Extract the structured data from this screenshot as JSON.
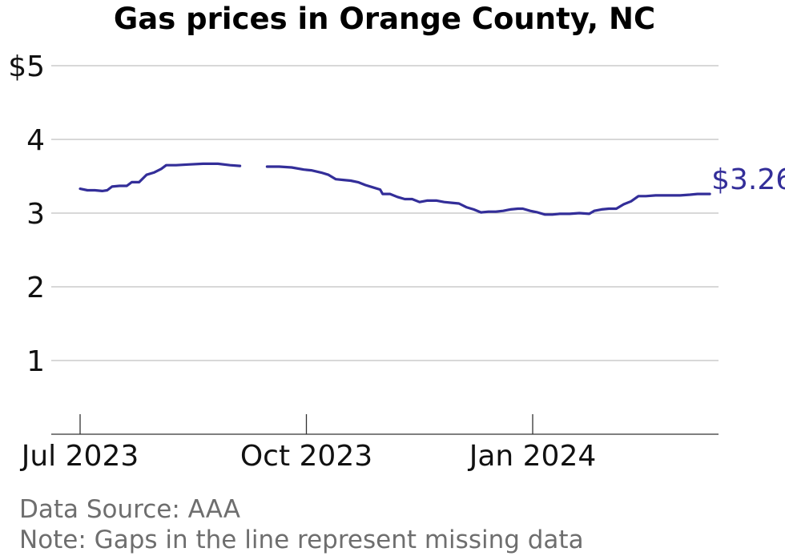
{
  "chart_data": {
    "type": "line",
    "title": "Gas prices in Orange County, NC",
    "xlabel": "",
    "ylabel": "",
    "ylim": [
      0,
      5
    ],
    "xlim": [
      "2023-06-24",
      "2024-03-27"
    ],
    "grid": "horizontal",
    "yticks": [
      {
        "value": 5,
        "label": "$5"
      },
      {
        "value": 4,
        "label": "4"
      },
      {
        "value": 3,
        "label": "3"
      },
      {
        "value": 2,
        "label": "2"
      },
      {
        "value": 1,
        "label": "1"
      }
    ],
    "xticks": [
      {
        "date": "2023-07-01",
        "label": "Jul 2023"
      },
      {
        "date": "2023-10-01",
        "label": "Oct 2023"
      },
      {
        "date": "2024-01-01",
        "label": "Jan 2024"
      }
    ],
    "series": [
      {
        "color": "#332e99",
        "end_label": "$3.26",
        "points": [
          [
            "2023-07-01",
            3.33
          ],
          [
            "2023-07-04",
            3.31
          ],
          [
            "2023-07-07",
            3.31
          ],
          [
            "2023-07-10",
            3.3
          ],
          [
            "2023-07-12",
            3.31
          ],
          [
            "2023-07-14",
            3.36
          ],
          [
            "2023-07-17",
            3.37
          ],
          [
            "2023-07-20",
            3.37
          ],
          [
            "2023-07-22",
            3.42
          ],
          [
            "2023-07-25",
            3.42
          ],
          [
            "2023-07-28",
            3.52
          ],
          [
            "2023-07-31",
            3.55
          ],
          [
            "2023-08-03",
            3.6
          ],
          [
            "2023-08-05",
            3.65
          ],
          [
            "2023-08-09",
            3.65
          ],
          [
            "2023-08-14",
            3.66
          ],
          [
            "2023-08-20",
            3.67
          ],
          [
            "2023-08-26",
            3.67
          ],
          [
            "2023-08-31",
            3.65
          ],
          [
            "2023-09-04",
            3.64
          ],
          [
            null,
            null
          ],
          [
            "2023-09-15",
            3.63
          ],
          [
            "2023-09-20",
            3.63
          ],
          [
            "2023-09-25",
            3.62
          ],
          [
            "2023-09-30",
            3.59
          ],
          [
            "2023-10-03",
            3.58
          ],
          [
            "2023-10-07",
            3.55
          ],
          [
            "2023-10-10",
            3.52
          ],
          [
            "2023-10-13",
            3.46
          ],
          [
            "2023-10-16",
            3.45
          ],
          [
            "2023-10-19",
            3.44
          ],
          [
            "2023-10-22",
            3.42
          ],
          [
            "2023-10-25",
            3.38
          ],
          [
            "2023-10-28",
            3.35
          ],
          [
            "2023-10-31",
            3.32
          ],
          [
            "2023-11-01",
            3.26
          ],
          [
            "2023-11-04",
            3.26
          ],
          [
            "2023-11-07",
            3.22
          ],
          [
            "2023-11-10",
            3.19
          ],
          [
            "2023-11-13",
            3.19
          ],
          [
            "2023-11-16",
            3.15
          ],
          [
            "2023-11-19",
            3.17
          ],
          [
            "2023-11-23",
            3.17
          ],
          [
            "2023-11-26",
            3.15
          ],
          [
            "2023-11-29",
            3.14
          ],
          [
            "2023-12-02",
            3.13
          ],
          [
            "2023-12-05",
            3.08
          ],
          [
            "2023-12-08",
            3.05
          ],
          [
            "2023-12-11",
            3.01
          ],
          [
            "2023-12-14",
            3.02
          ],
          [
            "2023-12-17",
            3.02
          ],
          [
            "2023-12-20",
            3.03
          ],
          [
            "2023-12-23",
            3.05
          ],
          [
            "2023-12-26",
            3.06
          ],
          [
            "2023-12-28",
            3.06
          ],
          [
            "2023-12-31",
            3.03
          ],
          [
            "2024-01-03",
            3.01
          ],
          [
            "2024-01-06",
            2.98
          ],
          [
            "2024-01-09",
            2.98
          ],
          [
            "2024-01-12",
            2.99
          ],
          [
            "2024-01-16",
            2.99
          ],
          [
            "2024-01-20",
            3.0
          ],
          [
            "2024-01-24",
            2.99
          ],
          [
            "2024-01-26",
            3.03
          ],
          [
            "2024-01-29",
            3.05
          ],
          [
            "2024-02-01",
            3.06
          ],
          [
            "2024-02-04",
            3.06
          ],
          [
            "2024-02-07",
            3.12
          ],
          [
            "2024-02-10",
            3.16
          ],
          [
            "2024-02-13",
            3.23
          ],
          [
            "2024-02-16",
            3.23
          ],
          [
            "2024-02-20",
            3.24
          ],
          [
            "2024-02-25",
            3.24
          ],
          [
            "2024-03-01",
            3.24
          ],
          [
            "2024-03-05",
            3.25
          ],
          [
            "2024-03-08",
            3.26
          ],
          [
            "2024-03-13",
            3.26
          ]
        ]
      }
    ]
  },
  "notes": {
    "source": "Data Source: AAA",
    "note": "Note: Gaps in the line represent missing data"
  }
}
